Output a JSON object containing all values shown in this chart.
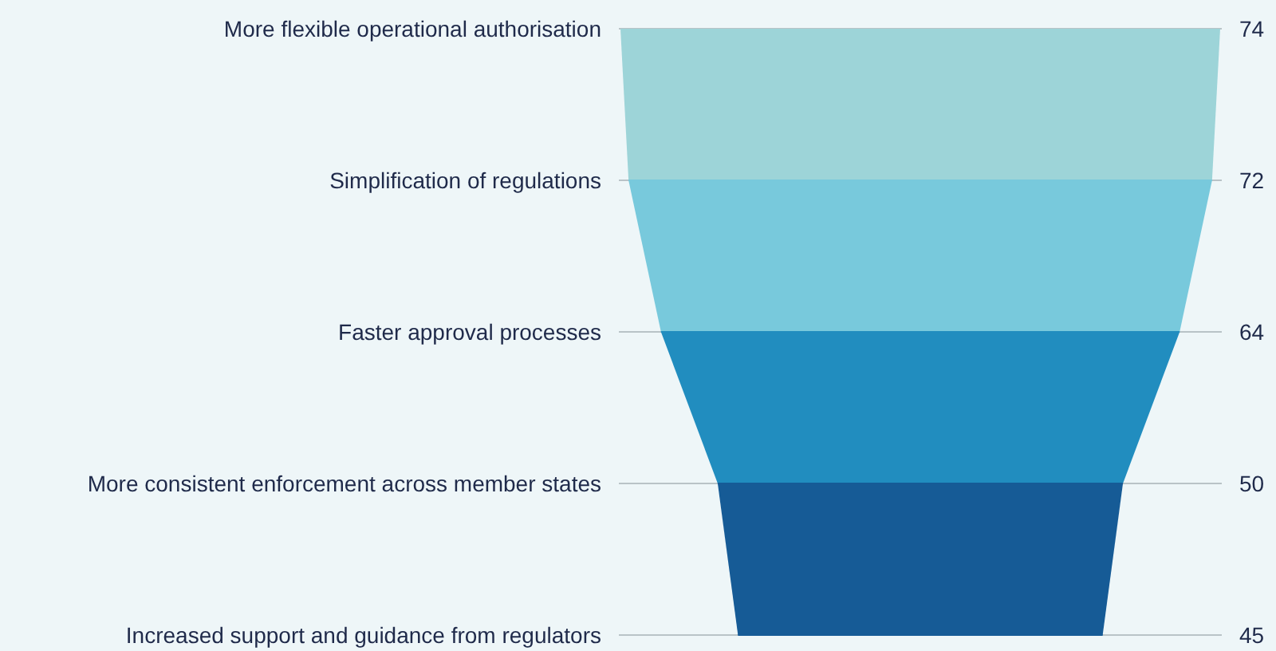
{
  "chart_data": {
    "type": "other",
    "categories": [
      "More flexible operational authorisation",
      "Simplification of regulations",
      "Faster approval processes",
      "More consistent enforcement across member states",
      "Increased support and guidance from regulators"
    ],
    "values": [
      74,
      72,
      64,
      50,
      45
    ],
    "colors": [
      "#9dd4d8",
      "#78c9dc",
      "#218dbf",
      "#165b96",
      "#165b96"
    ],
    "data_labels": true
  }
}
